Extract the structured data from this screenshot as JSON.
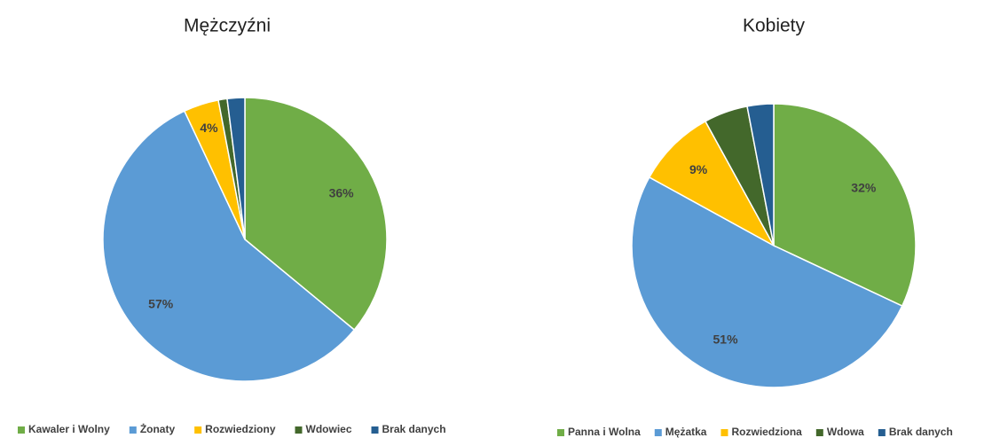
{
  "chart_data": [
    {
      "type": "pie",
      "title": "Mężczyźni",
      "categories": [
        "Kawaler i  Wolny",
        "Żonaty",
        "Rozwiedziony",
        "Wdowiec",
        "Brak danych"
      ],
      "values": [
        36,
        57,
        4,
        1,
        2
      ],
      "value_labels": [
        "36%",
        "57%",
        "4%",
        null,
        null
      ],
      "colors": [
        "#70ad47",
        "#5b9bd5",
        "#ffc000",
        "#43682b",
        "#255e91"
      ]
    },
    {
      "type": "pie",
      "title": "Kobiety",
      "categories": [
        "Panna i Wolna",
        "Mężatka",
        "Rozwiedziona",
        "Wdowa",
        "Brak danych"
      ],
      "values": [
        32,
        51,
        9,
        5,
        3
      ],
      "value_labels": [
        "32%",
        "51%",
        "9%",
        null,
        null
      ],
      "colors": [
        "#70ad47",
        "#5b9bd5",
        "#ffc000",
        "#43682b",
        "#255e91"
      ]
    }
  ]
}
